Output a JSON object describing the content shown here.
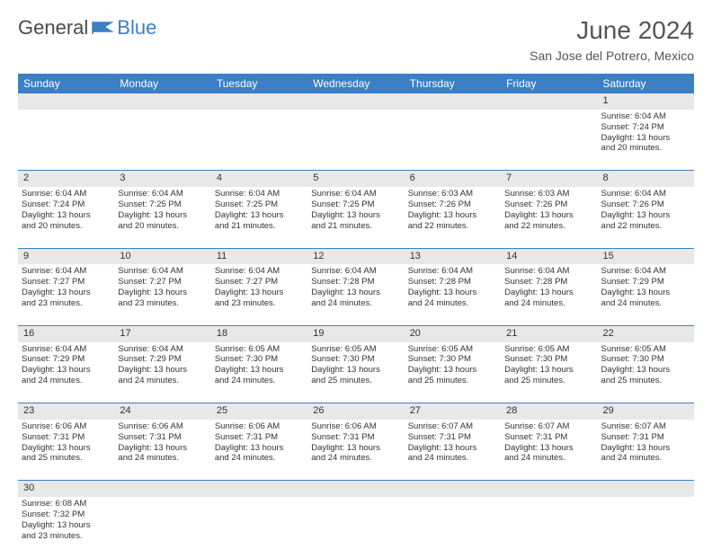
{
  "brand": {
    "name_a": "General",
    "name_b": "Blue"
  },
  "title": "June 2024",
  "location": "San Jose del Potrero, Mexico",
  "columns": [
    "Sunday",
    "Monday",
    "Tuesday",
    "Wednesday",
    "Thursday",
    "Friday",
    "Saturday"
  ],
  "colors": {
    "header_bg": "#3b7fc4",
    "header_fg": "#ffffff",
    "daynum_bg": "#e8e8e8",
    "border": "#3b7fc4",
    "text": "#333333"
  },
  "weeks": [
    [
      null,
      null,
      null,
      null,
      null,
      null,
      {
        "n": "1",
        "sr": "Sunrise: 6:04 AM",
        "ss": "Sunset: 7:24 PM",
        "d1": "Daylight: 13 hours",
        "d2": "and 20 minutes."
      }
    ],
    [
      {
        "n": "2",
        "sr": "Sunrise: 6:04 AM",
        "ss": "Sunset: 7:24 PM",
        "d1": "Daylight: 13 hours",
        "d2": "and 20 minutes."
      },
      {
        "n": "3",
        "sr": "Sunrise: 6:04 AM",
        "ss": "Sunset: 7:25 PM",
        "d1": "Daylight: 13 hours",
        "d2": "and 20 minutes."
      },
      {
        "n": "4",
        "sr": "Sunrise: 6:04 AM",
        "ss": "Sunset: 7:25 PM",
        "d1": "Daylight: 13 hours",
        "d2": "and 21 minutes."
      },
      {
        "n": "5",
        "sr": "Sunrise: 6:04 AM",
        "ss": "Sunset: 7:25 PM",
        "d1": "Daylight: 13 hours",
        "d2": "and 21 minutes."
      },
      {
        "n": "6",
        "sr": "Sunrise: 6:03 AM",
        "ss": "Sunset: 7:26 PM",
        "d1": "Daylight: 13 hours",
        "d2": "and 22 minutes."
      },
      {
        "n": "7",
        "sr": "Sunrise: 6:03 AM",
        "ss": "Sunset: 7:26 PM",
        "d1": "Daylight: 13 hours",
        "d2": "and 22 minutes."
      },
      {
        "n": "8",
        "sr": "Sunrise: 6:04 AM",
        "ss": "Sunset: 7:26 PM",
        "d1": "Daylight: 13 hours",
        "d2": "and 22 minutes."
      }
    ],
    [
      {
        "n": "9",
        "sr": "Sunrise: 6:04 AM",
        "ss": "Sunset: 7:27 PM",
        "d1": "Daylight: 13 hours",
        "d2": "and 23 minutes."
      },
      {
        "n": "10",
        "sr": "Sunrise: 6:04 AM",
        "ss": "Sunset: 7:27 PM",
        "d1": "Daylight: 13 hours",
        "d2": "and 23 minutes."
      },
      {
        "n": "11",
        "sr": "Sunrise: 6:04 AM",
        "ss": "Sunset: 7:27 PM",
        "d1": "Daylight: 13 hours",
        "d2": "and 23 minutes."
      },
      {
        "n": "12",
        "sr": "Sunrise: 6:04 AM",
        "ss": "Sunset: 7:28 PM",
        "d1": "Daylight: 13 hours",
        "d2": "and 24 minutes."
      },
      {
        "n": "13",
        "sr": "Sunrise: 6:04 AM",
        "ss": "Sunset: 7:28 PM",
        "d1": "Daylight: 13 hours",
        "d2": "and 24 minutes."
      },
      {
        "n": "14",
        "sr": "Sunrise: 6:04 AM",
        "ss": "Sunset: 7:28 PM",
        "d1": "Daylight: 13 hours",
        "d2": "and 24 minutes."
      },
      {
        "n": "15",
        "sr": "Sunrise: 6:04 AM",
        "ss": "Sunset: 7:29 PM",
        "d1": "Daylight: 13 hours",
        "d2": "and 24 minutes."
      }
    ],
    [
      {
        "n": "16",
        "sr": "Sunrise: 6:04 AM",
        "ss": "Sunset: 7:29 PM",
        "d1": "Daylight: 13 hours",
        "d2": "and 24 minutes."
      },
      {
        "n": "17",
        "sr": "Sunrise: 6:04 AM",
        "ss": "Sunset: 7:29 PM",
        "d1": "Daylight: 13 hours",
        "d2": "and 24 minutes."
      },
      {
        "n": "18",
        "sr": "Sunrise: 6:05 AM",
        "ss": "Sunset: 7:30 PM",
        "d1": "Daylight: 13 hours",
        "d2": "and 24 minutes."
      },
      {
        "n": "19",
        "sr": "Sunrise: 6:05 AM",
        "ss": "Sunset: 7:30 PM",
        "d1": "Daylight: 13 hours",
        "d2": "and 25 minutes."
      },
      {
        "n": "20",
        "sr": "Sunrise: 6:05 AM",
        "ss": "Sunset: 7:30 PM",
        "d1": "Daylight: 13 hours",
        "d2": "and 25 minutes."
      },
      {
        "n": "21",
        "sr": "Sunrise: 6:05 AM",
        "ss": "Sunset: 7:30 PM",
        "d1": "Daylight: 13 hours",
        "d2": "and 25 minutes."
      },
      {
        "n": "22",
        "sr": "Sunrise: 6:05 AM",
        "ss": "Sunset: 7:30 PM",
        "d1": "Daylight: 13 hours",
        "d2": "and 25 minutes."
      }
    ],
    [
      {
        "n": "23",
        "sr": "Sunrise: 6:06 AM",
        "ss": "Sunset: 7:31 PM",
        "d1": "Daylight: 13 hours",
        "d2": "and 25 minutes."
      },
      {
        "n": "24",
        "sr": "Sunrise: 6:06 AM",
        "ss": "Sunset: 7:31 PM",
        "d1": "Daylight: 13 hours",
        "d2": "and 24 minutes."
      },
      {
        "n": "25",
        "sr": "Sunrise: 6:06 AM",
        "ss": "Sunset: 7:31 PM",
        "d1": "Daylight: 13 hours",
        "d2": "and 24 minutes."
      },
      {
        "n": "26",
        "sr": "Sunrise: 6:06 AM",
        "ss": "Sunset: 7:31 PM",
        "d1": "Daylight: 13 hours",
        "d2": "and 24 minutes."
      },
      {
        "n": "27",
        "sr": "Sunrise: 6:07 AM",
        "ss": "Sunset: 7:31 PM",
        "d1": "Daylight: 13 hours",
        "d2": "and 24 minutes."
      },
      {
        "n": "28",
        "sr": "Sunrise: 6:07 AM",
        "ss": "Sunset: 7:31 PM",
        "d1": "Daylight: 13 hours",
        "d2": "and 24 minutes."
      },
      {
        "n": "29",
        "sr": "Sunrise: 6:07 AM",
        "ss": "Sunset: 7:31 PM",
        "d1": "Daylight: 13 hours",
        "d2": "and 24 minutes."
      }
    ],
    [
      {
        "n": "30",
        "sr": "Sunrise: 6:08 AM",
        "ss": "Sunset: 7:32 PM",
        "d1": "Daylight: 13 hours",
        "d2": "and 23 minutes."
      },
      null,
      null,
      null,
      null,
      null,
      null
    ]
  ]
}
